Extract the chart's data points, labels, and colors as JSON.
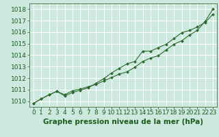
{
  "bg_color": "#cce8df",
  "grid_color": "#ffffff",
  "line_color": "#2d6a2d",
  "marker_color": "#2d6a2d",
  "xlabel": "Graphe pression niveau de la mer (hPa)",
  "xlabel_color": "#1a5c1a",
  "xlabel_fontsize": 7.5,
  "tick_color": "#1a5c1a",
  "tick_fontsize": 6.5,
  "ylim": [
    1009.5,
    1018.5
  ],
  "xlim": [
    -0.5,
    23.5
  ],
  "yticks": [
    1010,
    1011,
    1012,
    1013,
    1014,
    1015,
    1016,
    1017,
    1018
  ],
  "xticks": [
    0,
    1,
    2,
    3,
    4,
    5,
    6,
    7,
    8,
    9,
    10,
    11,
    12,
    13,
    14,
    15,
    16,
    17,
    18,
    19,
    20,
    21,
    22,
    23
  ],
  "line1_x": [
    0,
    1,
    2,
    3,
    4,
    5,
    6,
    7,
    8,
    9,
    10,
    11,
    12,
    13,
    14,
    15,
    16,
    17,
    18,
    19,
    20,
    21,
    22,
    23
  ],
  "line1_y": [
    1009.8,
    1010.2,
    1010.55,
    1010.85,
    1010.55,
    1010.9,
    1011.05,
    1011.25,
    1011.45,
    1011.75,
    1012.05,
    1012.35,
    1012.55,
    1012.95,
    1013.45,
    1013.75,
    1013.95,
    1014.45,
    1014.95,
    1015.25,
    1015.75,
    1016.15,
    1016.95,
    1018.0
  ],
  "line2_x": [
    0,
    1,
    2,
    3,
    4,
    5,
    6,
    7,
    8,
    9,
    10,
    11,
    12,
    13,
    14,
    15,
    16,
    17,
    18,
    19,
    20,
    21,
    22,
    23
  ],
  "line2_y": [
    1009.8,
    1010.2,
    1010.55,
    1010.85,
    1010.45,
    1010.75,
    1010.95,
    1011.15,
    1011.55,
    1011.95,
    1012.45,
    1012.85,
    1013.25,
    1013.45,
    1014.35,
    1014.35,
    1014.65,
    1014.95,
    1015.45,
    1015.95,
    1016.15,
    1016.45,
    1016.85,
    1017.55
  ]
}
